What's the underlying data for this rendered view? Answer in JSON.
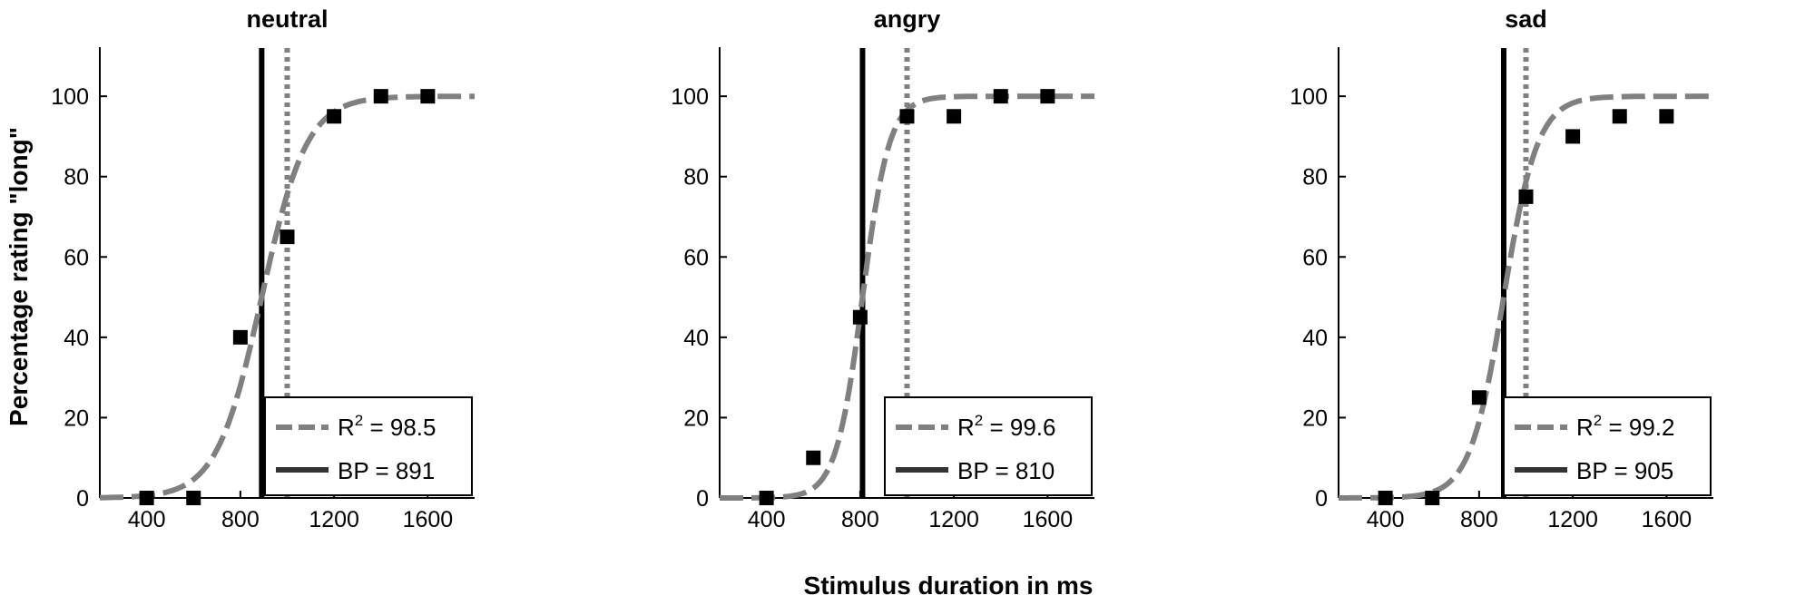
{
  "chart_data": {
    "type": "line",
    "ylabel": "Percentage rating \"long\"",
    "xlabel": "Stimulus duration in ms",
    "xlim": [
      200,
      1800
    ],
    "ylim": [
      0,
      112
    ],
    "xticks": [
      400,
      800,
      1200,
      1600
    ],
    "yticks": [
      0,
      20,
      40,
      60,
      80,
      100
    ],
    "reference_line_x": 1000,
    "grid": false,
    "legend_position": "bottom-right",
    "colors": {
      "fit": "#808080",
      "bp": "#000000",
      "points": "#000000",
      "reference": "#808080"
    },
    "panels": [
      {
        "title": "neutral",
        "points": {
          "x": [
            400,
            600,
            800,
            1000,
            1200,
            1400,
            1600
          ],
          "y": [
            0,
            0,
            40,
            65,
            95,
            100,
            100
          ]
        },
        "fit": {
          "midpoint": 891,
          "slope": 0.0104
        },
        "bp": 891,
        "legend": {
          "r2_prefix": "R",
          "r2_sup": "2",
          "r2_text": " = 98.5",
          "bp_text": "BP = 891"
        }
      },
      {
        "title": "angry",
        "points": {
          "x": [
            400,
            600,
            800,
            1000,
            1200,
            1400,
            1600
          ],
          "y": [
            0,
            10,
            45,
            95,
            95,
            100,
            100
          ]
        },
        "fit": {
          "midpoint": 810,
          "slope": 0.0175
        },
        "bp": 810,
        "legend": {
          "r2_prefix": "R",
          "r2_sup": "2",
          "r2_text": " = 99.6",
          "bp_text": "BP = 810"
        }
      },
      {
        "title": "sad",
        "points": {
          "x": [
            400,
            600,
            800,
            1000,
            1200,
            1400,
            1600
          ],
          "y": [
            0,
            0,
            25,
            75,
            90,
            95,
            95
          ]
        },
        "fit": {
          "midpoint": 905,
          "slope": 0.0138
        },
        "bp": 905,
        "legend": {
          "r2_prefix": "R",
          "r2_sup": "2",
          "r2_text": " = 99.2",
          "bp_text": "BP = 905"
        }
      }
    ]
  }
}
